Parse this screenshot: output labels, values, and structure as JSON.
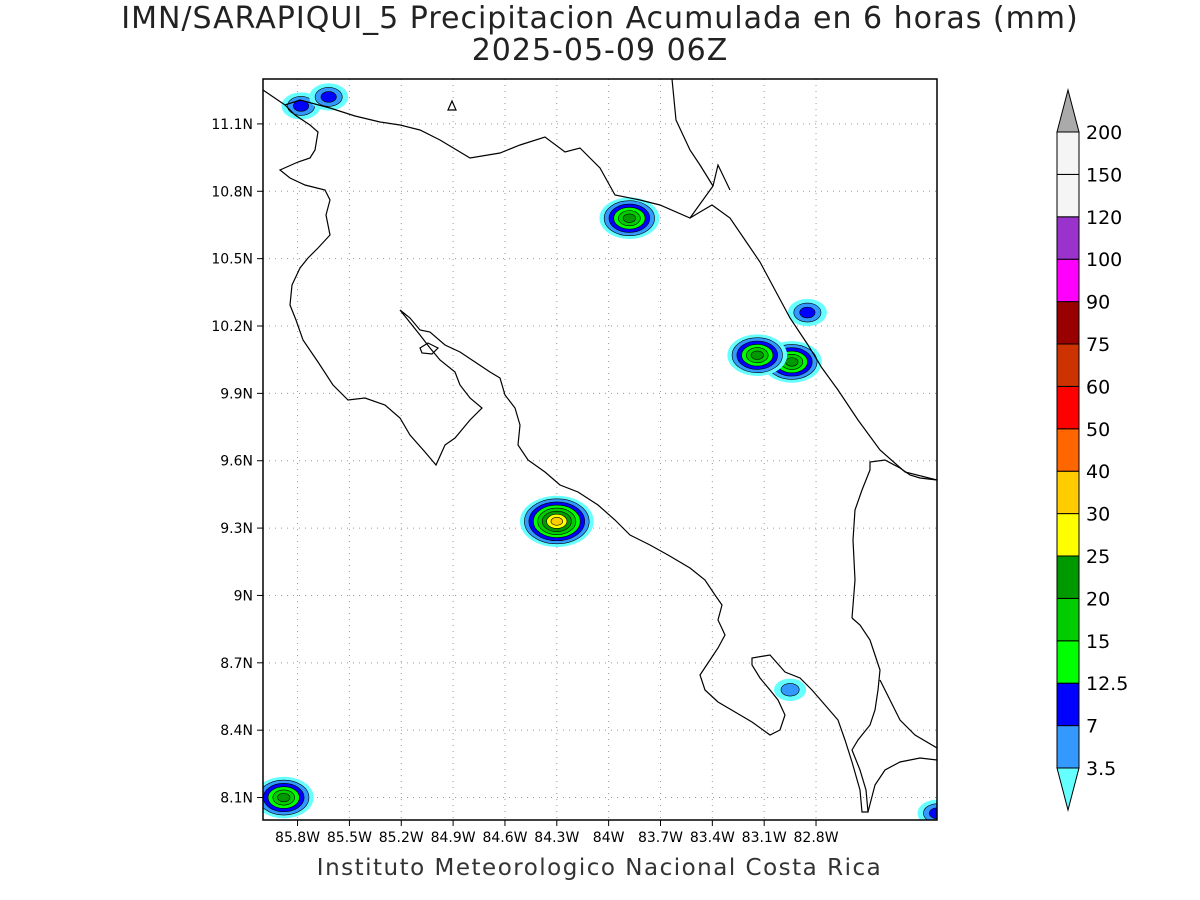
{
  "title": {
    "line1": "IMN/SARAPIQUI_5 Precipitacion Acumulada en 6 horas (mm)",
    "line2": "2025-05-09 06Z"
  },
  "footer": "Instituto Meteorologico Nacional Costa Rica",
  "map": {
    "lon_range": [
      -86.0,
      -82.1
    ],
    "lat_range": [
      8.0,
      11.3
    ],
    "x_ticks": [
      "85.8W",
      "85.5W",
      "85.2W",
      "84.9W",
      "84.6W",
      "84.3W",
      "84W",
      "83.7W",
      "83.4W",
      "83.1W",
      "82.8W"
    ],
    "x_tick_values": [
      -85.8,
      -85.5,
      -85.2,
      -84.9,
      -84.6,
      -84.3,
      -84.0,
      -83.7,
      -83.4,
      -83.1,
      -82.8
    ],
    "y_ticks": [
      "11.1N",
      "10.8N",
      "10.5N",
      "10.2N",
      "9.9N",
      "9.6N",
      "9.3N",
      "9N",
      "8.7N",
      "8.4N",
      "8.1N"
    ],
    "y_tick_values": [
      11.1,
      10.8,
      10.5,
      10.2,
      9.9,
      9.6,
      9.3,
      9.0,
      8.7,
      8.4,
      8.1
    ],
    "grid": "dotted"
  },
  "colorbar": {
    "labels": [
      "3.5",
      "7",
      "12.5",
      "15",
      "20",
      "25",
      "30",
      "40",
      "50",
      "60",
      "75",
      "90",
      "100",
      "120",
      "150",
      "200"
    ],
    "colors": [
      "#66ffff",
      "#3399ff",
      "#0000ff",
      "#00ff00",
      "#00cc00",
      "#009900",
      "#ffff00",
      "#ffcc00",
      "#ff6600",
      "#ff0000",
      "#cc3300",
      "#990000",
      "#ff00ff",
      "#9933cc",
      "#f5f5f5",
      "#aaaaaa"
    ]
  },
  "precip_cells": [
    {
      "lon": -84.3,
      "lat": 9.33,
      "max": 40
    },
    {
      "lon": -83.88,
      "lat": 10.68,
      "max": 25
    },
    {
      "lon": -82.94,
      "lat": 10.04,
      "max": 25
    },
    {
      "lon": -83.14,
      "lat": 10.07,
      "max": 25
    },
    {
      "lon": -85.88,
      "lat": 8.1,
      "max": 25
    },
    {
      "lon": -85.78,
      "lat": 11.18,
      "max": 12.5
    },
    {
      "lon": -85.62,
      "lat": 11.22,
      "max": 12.5
    },
    {
      "lon": -82.85,
      "lat": 10.26,
      "max": 12.5
    },
    {
      "lon": -82.95,
      "lat": 8.58,
      "max": 7
    },
    {
      "lon": -82.1,
      "lat": 8.03,
      "max": 12.5
    }
  ]
}
